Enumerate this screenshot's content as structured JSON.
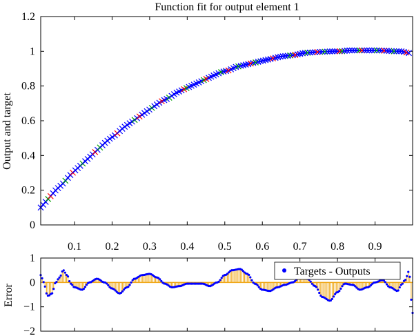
{
  "chart_data": [
    {
      "type": "scatter",
      "title": "Function fit for output element 1",
      "xlabel": "",
      "ylabel": "Output and target",
      "xlim": [
        0.01,
        1.0
      ],
      "ylim": [
        0,
        1.2
      ],
      "xticks": [
        0.1,
        0.2,
        0.3,
        0.4,
        0.5,
        0.6,
        0.7,
        0.8,
        0.9
      ],
      "xtick_labels": [
        "0.1",
        "0.2",
        "0.3",
        "0.4",
        "0.5",
        "0.6",
        "0.7",
        "0.8",
        "0.9"
      ],
      "yticks": [
        0,
        0.2,
        0.4,
        0.6,
        0.8,
        1,
        1.2
      ],
      "ytick_labels": [
        "0",
        "0.2",
        "0.4",
        "0.6",
        "0.8",
        "1",
        "1.2"
      ],
      "grid": false,
      "colors": {
        "output_line": "#0000ff",
        "train_marker": "#0000ff",
        "validation_marker": "#00a000",
        "test_marker": "#ff0000"
      },
      "x": [
        0.01,
        0.03,
        0.05,
        0.07,
        0.09,
        0.11,
        0.13,
        0.15,
        0.17,
        0.19,
        0.21,
        0.23,
        0.25,
        0.27,
        0.29,
        0.31,
        0.33,
        0.35,
        0.37,
        0.39,
        0.41,
        0.43,
        0.45,
        0.47,
        0.49,
        0.51,
        0.53,
        0.55,
        0.57,
        0.59,
        0.61,
        0.63,
        0.65,
        0.67,
        0.69,
        0.71,
        0.73,
        0.75,
        0.77,
        0.79,
        0.81,
        0.83,
        0.85,
        0.87,
        0.89,
        0.91,
        0.93,
        0.95,
        0.97,
        0.99
      ],
      "y": [
        0.1,
        0.15,
        0.2,
        0.24,
        0.29,
        0.33,
        0.37,
        0.41,
        0.45,
        0.49,
        0.52,
        0.56,
        0.59,
        0.62,
        0.65,
        0.68,
        0.71,
        0.73,
        0.76,
        0.78,
        0.8,
        0.82,
        0.84,
        0.86,
        0.88,
        0.89,
        0.91,
        0.92,
        0.93,
        0.94,
        0.95,
        0.96,
        0.97,
        0.975,
        0.98,
        0.99,
        0.993,
        0.996,
        0.998,
        1.0,
        1.0,
        1.005,
        1.005,
        1.005,
        1.005,
        1.005,
        1.003,
        1.0,
        1.0,
        0.99
      ]
    },
    {
      "type": "bar",
      "title": "",
      "xlabel": "",
      "ylabel": "Error",
      "xlim": [
        0.01,
        1.0
      ],
      "ylim": [
        -2,
        1
      ],
      "yticks": [
        -2,
        -1,
        0,
        1
      ],
      "ytick_labels": [
        "−2",
        "−1",
        "0",
        "1"
      ],
      "grid": false,
      "legend": {
        "placement": "top-right",
        "entries": [
          "Targets - Outputs"
        ]
      },
      "colors": {
        "error_stem": "#f0a818",
        "error_marker": "#0000ff",
        "zero_line": "#f0a818"
      },
      "series": [
        {
          "name": "Targets - Outputs",
          "x": [
            0.01,
            0.015,
            0.02,
            0.025,
            0.03,
            0.04,
            0.05,
            0.06,
            0.07,
            0.08,
            0.09,
            0.1,
            0.12,
            0.14,
            0.16,
            0.18,
            0.2,
            0.22,
            0.24,
            0.26,
            0.28,
            0.3,
            0.32,
            0.34,
            0.36,
            0.38,
            0.4,
            0.42,
            0.44,
            0.46,
            0.48,
            0.5,
            0.52,
            0.54,
            0.56,
            0.58,
            0.6,
            0.62,
            0.64,
            0.66,
            0.68,
            0.7,
            0.72,
            0.74,
            0.76,
            0.78,
            0.8,
            0.82,
            0.84,
            0.86,
            0.88,
            0.9,
            0.92,
            0.94,
            0.96,
            0.97,
            0.98,
            0.99,
            1.0
          ],
          "y": [
            0.3,
            0.15,
            -0.1,
            -0.45,
            -0.55,
            -0.45,
            0.0,
            0.2,
            0.5,
            0.3,
            -0.05,
            -0.2,
            -0.3,
            0.0,
            0.15,
            0.0,
            -0.25,
            -0.45,
            -0.2,
            0.15,
            0.3,
            0.35,
            0.2,
            -0.05,
            -0.2,
            -0.15,
            -0.05,
            -0.05,
            -0.05,
            -0.15,
            0.0,
            0.3,
            0.5,
            0.55,
            0.35,
            -0.05,
            -0.3,
            -0.35,
            -0.2,
            -0.1,
            0.0,
            0.2,
            0.15,
            -0.15,
            -0.6,
            -0.75,
            -0.4,
            -0.05,
            -0.1,
            -0.3,
            -0.2,
            0.0,
            0.1,
            -0.2,
            -0.35,
            -0.1,
            0.1,
            0.45,
            -1.25
          ]
        }
      ]
    }
  ]
}
